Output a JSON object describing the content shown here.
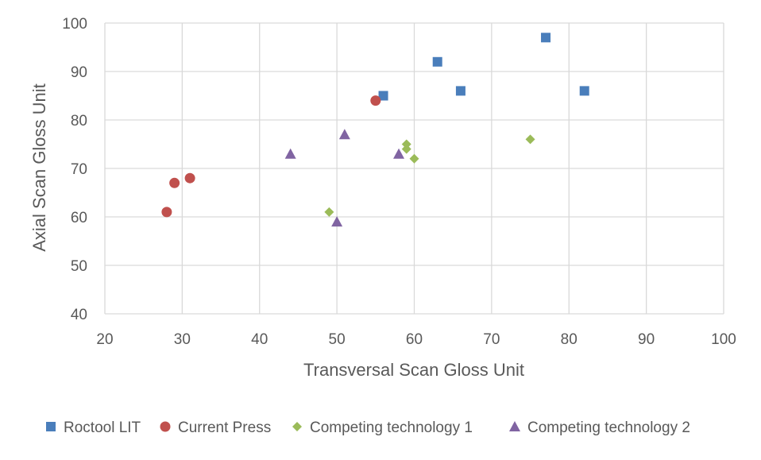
{
  "chart_data": {
    "type": "scatter",
    "title": "",
    "xlabel": "Transversal Scan Gloss Unit",
    "ylabel": "Axial Scan Gloss Unit",
    "xlim": [
      20,
      100
    ],
    "ylim": [
      40,
      100
    ],
    "xticks": [
      20,
      30,
      40,
      50,
      60,
      70,
      80,
      90,
      100
    ],
    "yticks": [
      40,
      50,
      60,
      70,
      80,
      90,
      100
    ],
    "grid": true,
    "legend_position": "bottom",
    "series": [
      {
        "name": "Roctool LIT",
        "marker": "square",
        "color": "#4a7ebb",
        "points": [
          [
            56,
            85
          ],
          [
            63,
            92
          ],
          [
            66,
            86
          ],
          [
            77,
            97
          ],
          [
            82,
            86
          ]
        ]
      },
      {
        "name": "Current Press",
        "marker": "circle",
        "color": "#c0504d",
        "points": [
          [
            28,
            61
          ],
          [
            29,
            67
          ],
          [
            31,
            68
          ],
          [
            55,
            84
          ]
        ]
      },
      {
        "name": "Competing technology 1",
        "marker": "diamond",
        "color": "#9bbb59",
        "points": [
          [
            49,
            61
          ],
          [
            59,
            75
          ],
          [
            59,
            74
          ],
          [
            60,
            72
          ],
          [
            75,
            76
          ]
        ]
      },
      {
        "name": "Competing technology 2",
        "marker": "triangle",
        "color": "#8064a2",
        "points": [
          [
            44,
            73
          ],
          [
            50,
            59
          ],
          [
            51,
            77
          ],
          [
            58,
            73
          ]
        ]
      }
    ]
  }
}
